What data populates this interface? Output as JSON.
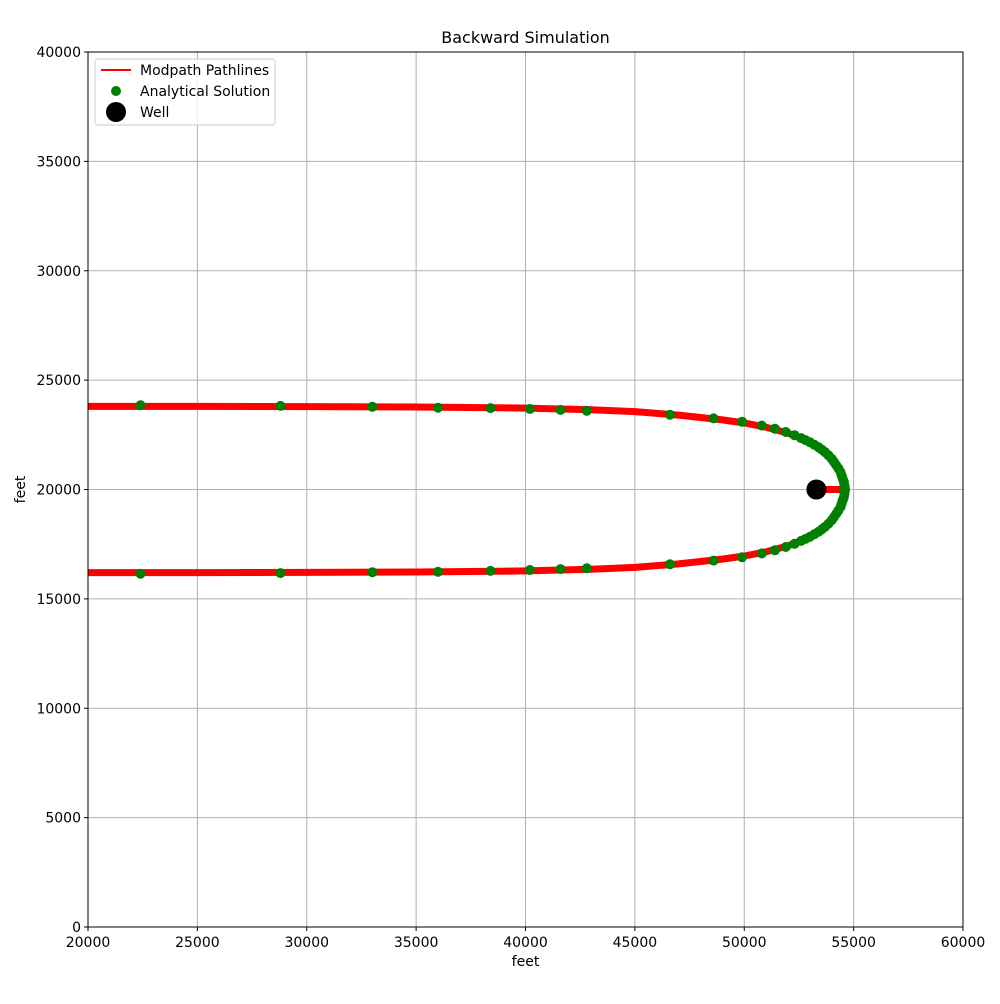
{
  "chart_data": {
    "type": "line",
    "title": "Backward Simulation",
    "xlabel": "feet",
    "ylabel": "feet",
    "xlim": [
      20000,
      60000
    ],
    "ylim": [
      0,
      40000
    ],
    "xticks": [
      20000,
      25000,
      30000,
      35000,
      40000,
      45000,
      50000,
      55000,
      60000
    ],
    "yticks": [
      0,
      5000,
      10000,
      15000,
      20000,
      25000,
      30000,
      35000,
      40000
    ],
    "grid": true,
    "legend_position": "top-left",
    "legend": [
      "Modpath Pathlines",
      "Analytical Solution",
      "Well"
    ],
    "colors": {
      "pathline": "#ff0000",
      "analytical": "#008000",
      "well": "#000000"
    },
    "series": [
      {
        "name": "Modpath Pathlines",
        "kind": "line",
        "points": [
          [
            20000,
            23800
          ],
          [
            25000,
            23800
          ],
          [
            30000,
            23790
          ],
          [
            35000,
            23770
          ],
          [
            40000,
            23720
          ],
          [
            43000,
            23650
          ],
          [
            45000,
            23560
          ],
          [
            47000,
            23400
          ],
          [
            49000,
            23180
          ],
          [
            50000,
            23040
          ],
          [
            51000,
            22850
          ],
          [
            52000,
            22580
          ],
          [
            52800,
            22250
          ],
          [
            53500,
            21850
          ],
          [
            54000,
            21450
          ],
          [
            54300,
            21050
          ],
          [
            54500,
            20600
          ],
          [
            54600,
            20000
          ],
          [
            54500,
            19400
          ],
          [
            54300,
            18950
          ],
          [
            54000,
            18550
          ],
          [
            53500,
            18150
          ],
          [
            52800,
            17750
          ],
          [
            52000,
            17420
          ],
          [
            51000,
            17150
          ],
          [
            50000,
            16960
          ],
          [
            49000,
            16820
          ],
          [
            47000,
            16600
          ],
          [
            45000,
            16440
          ],
          [
            43000,
            16350
          ],
          [
            40000,
            16280
          ],
          [
            35000,
            16230
          ],
          [
            30000,
            16210
          ],
          [
            25000,
            16200
          ],
          [
            20000,
            16200
          ]
        ]
      },
      {
        "name": "Modpath Pathlines (well stub)",
        "kind": "line",
        "points": [
          [
            53300,
            20000
          ],
          [
            54600,
            20000
          ]
        ]
      },
      {
        "name": "Analytical Solution",
        "kind": "scatter",
        "points": [
          [
            22400,
            23850
          ],
          [
            28800,
            23820
          ],
          [
            33000,
            23780
          ],
          [
            36000,
            23740
          ],
          [
            38400,
            23720
          ],
          [
            40200,
            23680
          ],
          [
            41600,
            23640
          ],
          [
            42800,
            23600
          ],
          [
            46600,
            23420
          ],
          [
            48600,
            23250
          ],
          [
            49900,
            23100
          ],
          [
            50800,
            22920
          ],
          [
            51400,
            22780
          ],
          [
            51900,
            22630
          ],
          [
            52300,
            22480
          ],
          [
            52600,
            22350
          ],
          [
            52800,
            22260
          ],
          [
            53000,
            22160
          ],
          [
            53200,
            22050
          ],
          [
            53400,
            21930
          ],
          [
            53550,
            21820
          ],
          [
            53700,
            21700
          ],
          [
            53850,
            21560
          ],
          [
            54000,
            21400
          ],
          [
            54100,
            21260
          ],
          [
            54200,
            21120
          ],
          [
            54300,
            20970
          ],
          [
            54400,
            20800
          ],
          [
            54450,
            20650
          ],
          [
            54500,
            20500
          ],
          [
            54550,
            20350
          ],
          [
            54580,
            20200
          ],
          [
            54600,
            20050
          ],
          [
            54600,
            19950
          ],
          [
            54580,
            19800
          ],
          [
            54550,
            19650
          ],
          [
            54500,
            19500
          ],
          [
            54450,
            19350
          ],
          [
            54400,
            19200
          ],
          [
            54300,
            19030
          ],
          [
            54200,
            18880
          ],
          [
            54100,
            18740
          ],
          [
            54000,
            18600
          ],
          [
            53850,
            18440
          ],
          [
            53700,
            18300
          ],
          [
            53550,
            18180
          ],
          [
            53400,
            18070
          ],
          [
            53200,
            17950
          ],
          [
            53000,
            17840
          ],
          [
            52800,
            17740
          ],
          [
            52600,
            17650
          ],
          [
            52300,
            17520
          ],
          [
            51900,
            17370
          ],
          [
            51400,
            17220
          ],
          [
            50800,
            17080
          ],
          [
            49900,
            16900
          ],
          [
            48600,
            16750
          ],
          [
            46600,
            16580
          ],
          [
            42800,
            16400
          ],
          [
            41600,
            16360
          ],
          [
            40200,
            16320
          ],
          [
            38400,
            16280
          ],
          [
            36000,
            16240
          ],
          [
            33000,
            16220
          ],
          [
            28800,
            16180
          ],
          [
            22400,
            16150
          ]
        ]
      },
      {
        "name": "Well",
        "kind": "marker",
        "points": [
          [
            53300,
            20000
          ]
        ]
      }
    ]
  }
}
